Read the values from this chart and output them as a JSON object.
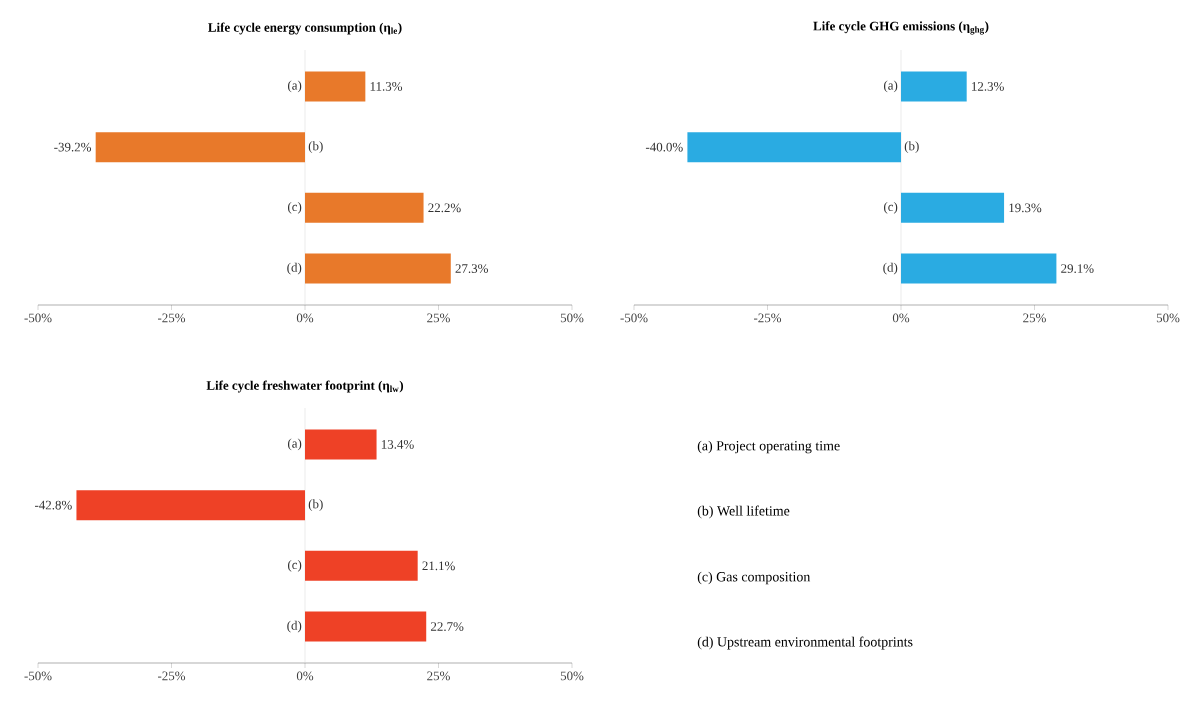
{
  "chart_data": [
    {
      "type": "bar",
      "orientation": "horizontal",
      "title": "Life cycle energy consumption (η$_{le}$)",
      "categories": [
        "(a)",
        "(b)",
        "(c)",
        "(d)"
      ],
      "values": [
        11.3,
        -39.2,
        22.2,
        27.3
      ],
      "value_labels": [
        "11.3%",
        "-39.2%",
        "22.2%",
        "27.3%"
      ],
      "color": "#e8792a",
      "xlim": [
        -50,
        50
      ],
      "xticks": [
        {
          "value": -50,
          "label": "-50%"
        },
        {
          "value": -25,
          "label": "-25%"
        },
        {
          "value": 0,
          "label": "0%"
        },
        {
          "value": 25,
          "label": "25%"
        },
        {
          "value": 50,
          "label": "50%"
        }
      ]
    },
    {
      "type": "bar",
      "orientation": "horizontal",
      "title": "Life cycle GHG emissions (η$_{ghg}$)",
      "categories": [
        "(a)",
        "(b)",
        "(c)",
        "(d)"
      ],
      "values": [
        12.3,
        -40.0,
        19.3,
        29.1
      ],
      "value_labels": [
        "12.3%",
        "-40.0%",
        "19.3%",
        "29.1%"
      ],
      "color": "#2aabe2",
      "xlim": [
        -50,
        50
      ],
      "xticks": [
        {
          "value": -50,
          "label": "-50%"
        },
        {
          "value": -25,
          "label": "-25%"
        },
        {
          "value": 0,
          "label": "0%"
        },
        {
          "value": 25,
          "label": "25%"
        },
        {
          "value": 50,
          "label": "50%"
        }
      ]
    },
    {
      "type": "bar",
      "orientation": "horizontal",
      "title": "Life cycle freshwater footprint (η$_{lw}$)",
      "categories": [
        "(a)",
        "(b)",
        "(c)",
        "(d)"
      ],
      "values": [
        13.4,
        -42.8,
        21.1,
        22.7
      ],
      "value_labels": [
        "13.4%",
        "-42.8%",
        "21.1%",
        "22.7%"
      ],
      "color": "#ee4126",
      "xlim": [
        -50,
        50
      ],
      "xticks": [
        {
          "value": -50,
          "label": "-50%"
        },
        {
          "value": -25,
          "label": "-25%"
        },
        {
          "value": 0,
          "label": "0%"
        },
        {
          "value": 25,
          "label": "25%"
        },
        {
          "value": 50,
          "label": "50%"
        }
      ]
    },
    {
      "type": "other",
      "annotations": [
        "(a) Project operating time",
        "(b) Well lifetime",
        "(c) Gas composition",
        "(d) Upstream environmental footprints"
      ]
    }
  ]
}
